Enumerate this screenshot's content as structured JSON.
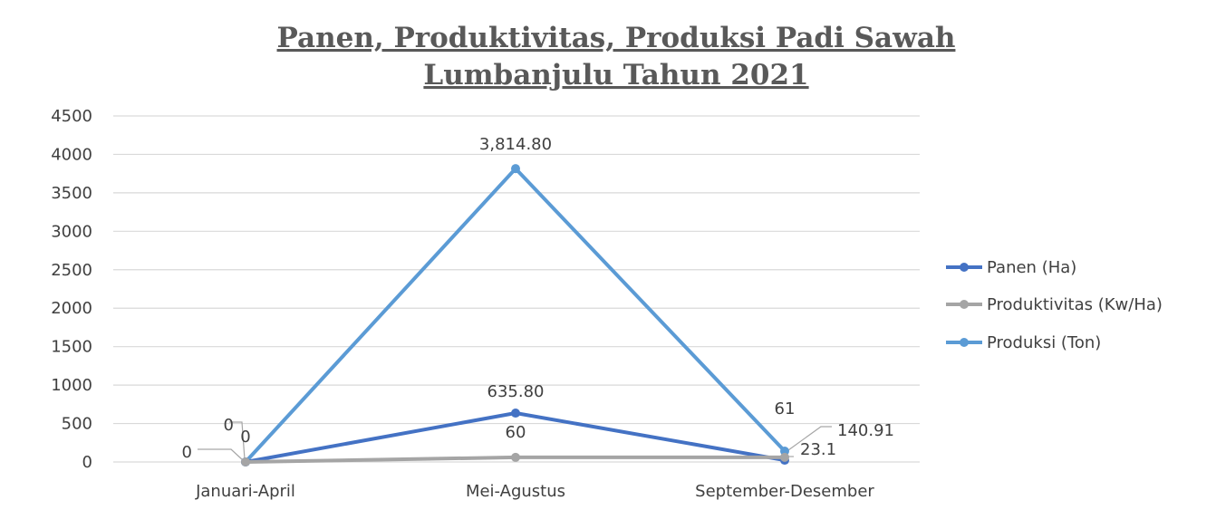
{
  "chart_data": {
    "type": "line",
    "title_line1": "Panen, Produktivitas, Produksi Padi Sawah",
    "title_line2": "Lumbanjulu Tahun 2021",
    "categories": [
      "Januari-April",
      "Mei-Agustus",
      "September-Desember"
    ],
    "ylim": [
      0,
      4500
    ],
    "yticks": [
      "0",
      "500",
      "1000",
      "1500",
      "2000",
      "2500",
      "3000",
      "3500",
      "4000",
      "4500"
    ],
    "grid": true,
    "legend_position": "right",
    "series": [
      {
        "name": "Panen (Ha)",
        "color": "#4472c4",
        "values": [
          0,
          635.8,
          23.1
        ],
        "labels": [
          "0",
          "635.80",
          "23.1"
        ]
      },
      {
        "name": "Produktivitas (Kw/Ha)",
        "color": "#a5a5a5",
        "values": [
          0,
          60,
          61
        ],
        "labels": [
          "0",
          "60",
          "61"
        ]
      },
      {
        "name": "Produksi (Ton)",
        "color": "#5b9bd5",
        "values": [
          0,
          3814.8,
          140.91
        ],
        "labels": [
          "0",
          "3,814.80",
          "140.91"
        ]
      }
    ]
  }
}
